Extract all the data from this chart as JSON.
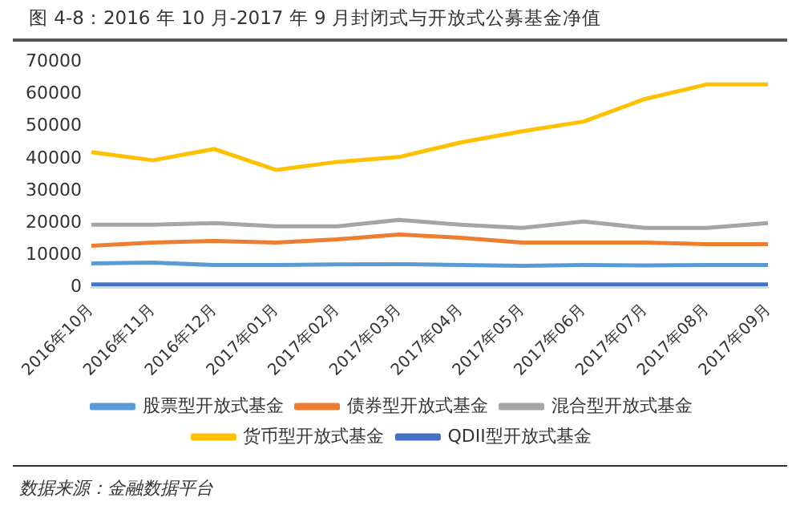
{
  "chart_data": {
    "type": "line",
    "title": "图 4-8：2016 年 10 月-2017 年 9 月封闭式与开放式公募基金净值",
    "categories": [
      "2016年10月",
      "2016年11月",
      "2016年12月",
      "2017年01月",
      "2017年02月",
      "2017年03月",
      "2017年04月",
      "2017年05月",
      "2017年06月",
      "2017年07月",
      "2017年08月",
      "2017年09月"
    ],
    "series": [
      {
        "name": "股票型开放式基金",
        "color": "#5b9bd5",
        "values": [
          7500,
          7800,
          7000,
          7000,
          7200,
          7300,
          7000,
          6800,
          7000,
          6900,
          7000,
          7000
        ]
      },
      {
        "name": "债券型开放式基金",
        "color": "#ed7d31",
        "values": [
          13000,
          14000,
          14500,
          14000,
          15000,
          16500,
          15500,
          14000,
          14000,
          14000,
          13500,
          13500
        ]
      },
      {
        "name": "混合型开放式基金",
        "color": "#a5a5a5",
        "values": [
          19500,
          19500,
          20000,
          19000,
          19000,
          21000,
          19500,
          18500,
          20500,
          18500,
          18500,
          20000
        ]
      },
      {
        "name": "货币型开放式基金",
        "color": "#ffc000",
        "values": [
          42000,
          39500,
          43000,
          36500,
          39000,
          40500,
          45000,
          48500,
          51500,
          58500,
          63000,
          63000
        ]
      },
      {
        "name": "QDII型开放式基金",
        "color": "#4472c4",
        "values": [
          1000,
          1000,
          1000,
          1000,
          1000,
          1000,
          1000,
          1000,
          1000,
          1000,
          1000,
          1000
        ]
      }
    ],
    "ylim": [
      0,
      70000
    ],
    "yticks": [
      0,
      10000,
      20000,
      30000,
      40000,
      50000,
      60000,
      70000
    ],
    "grid": false,
    "legend": "bottom",
    "marker": "none",
    "line_style": "solid",
    "annotations": [
      "数据来源：金融数据平台"
    ]
  }
}
